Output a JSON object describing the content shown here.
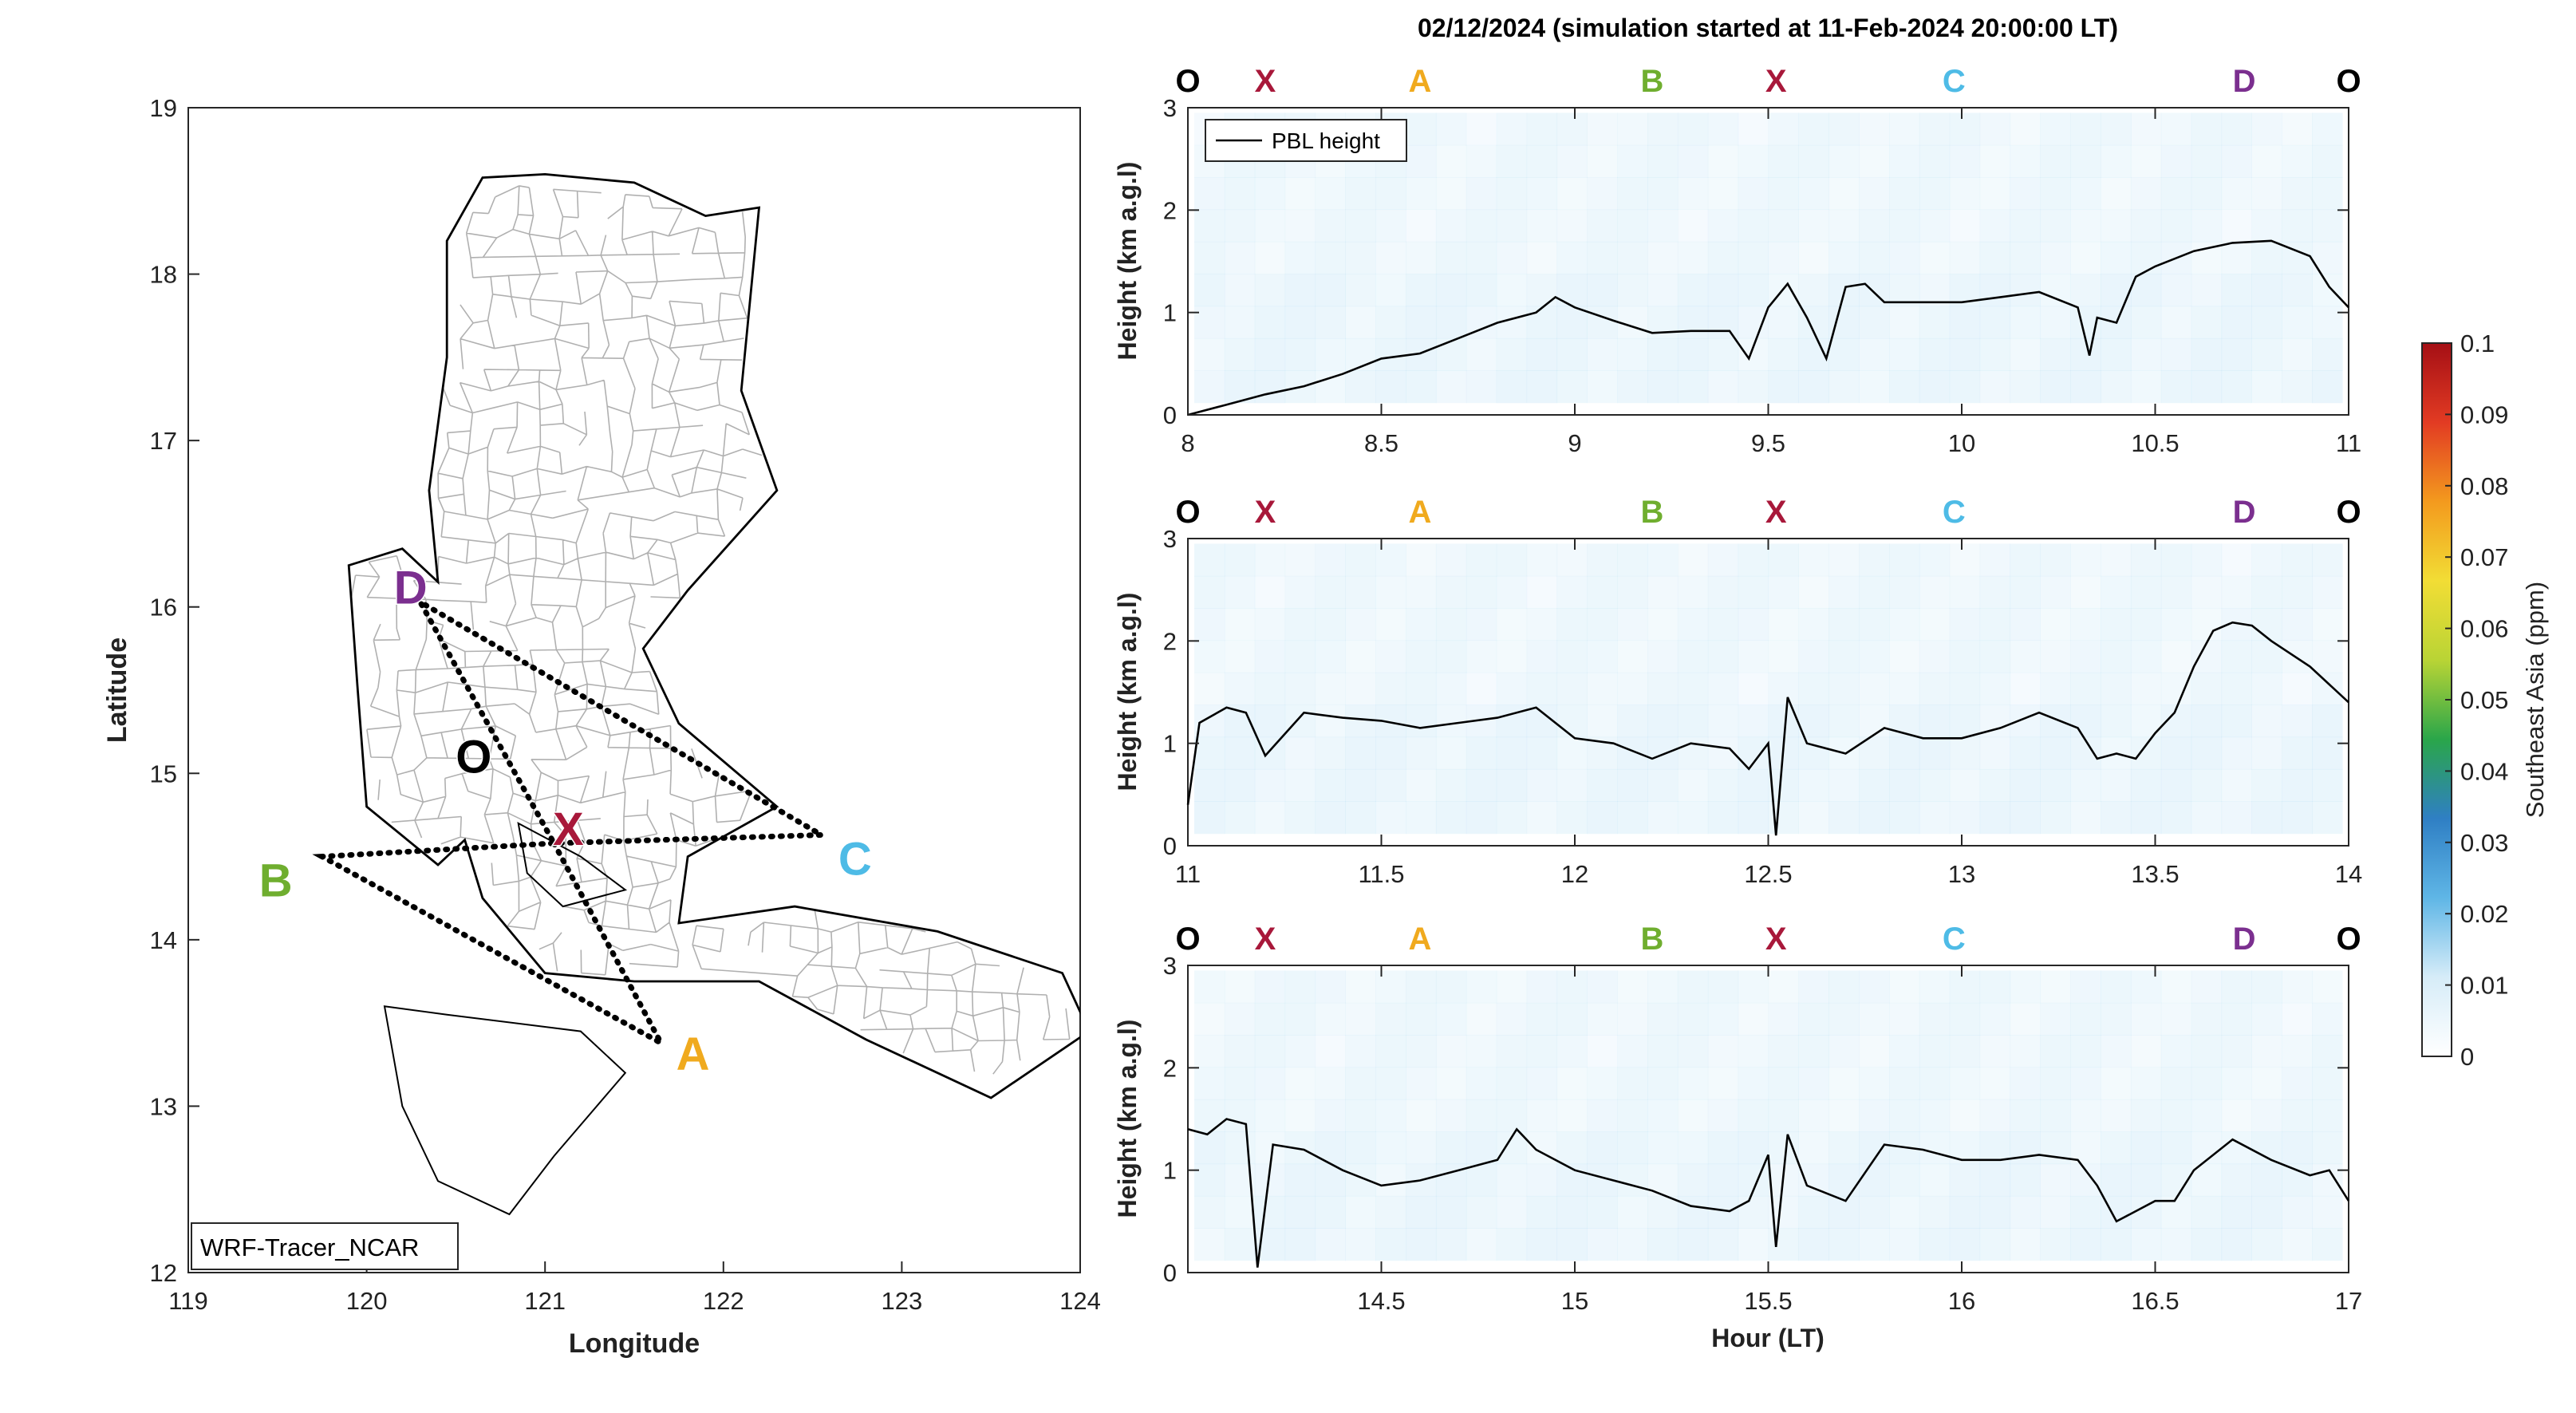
{
  "figure": {
    "title": "02/12/2024 (simulation started at 11-Feb-2024 20:00:00 LT)",
    "colorbar": {
      "label": "Southeast Asia (ppm)",
      "ticks": [
        "0",
        "0.01",
        "0.02",
        "0.03",
        "0.04",
        "0.05",
        "0.06",
        "0.07",
        "0.08",
        "0.09",
        "0.1"
      ],
      "range": [
        0,
        0.1
      ],
      "colormap": [
        "#ffffff",
        "#d6ecf8",
        "#5fb6e6",
        "#2f7fc4",
        "#2aa64a",
        "#b9d435",
        "#f2dd35",
        "#f39a1e",
        "#e23b23",
        "#a50f15"
      ]
    },
    "waypoint_colors": {
      "O": "#000000",
      "X": "#a8183a",
      "A": "#f0aa1e",
      "B": "#6fae2f",
      "C": "#4ebbe6",
      "D": "#7b2f8f"
    }
  },
  "chart_data": [
    {
      "type": "map",
      "xlabel": "Longitude",
      "ylabel": "Latitude",
      "xlim": [
        119,
        124
      ],
      "ylim": [
        12,
        19
      ],
      "xticks": [
        "119",
        "120",
        "121",
        "122",
        "123",
        "124"
      ],
      "yticks": [
        "12",
        "13",
        "14",
        "15",
        "16",
        "17",
        "18",
        "19"
      ],
      "annotation": "WRF-Tracer_NCAR",
      "waypoints": [
        {
          "label": "O",
          "lon": 120.6,
          "lat": 15.1
        },
        {
          "label": "X",
          "lon": 121.05,
          "lat": 14.58
        },
        {
          "label": "A",
          "lon": 121.65,
          "lat": 13.38
        },
        {
          "label": "B",
          "lon": 119.75,
          "lat": 14.5
        },
        {
          "label": "C",
          "lon": 122.55,
          "lat": 14.63
        },
        {
          "label": "D",
          "lon": 120.3,
          "lat": 16.03
        }
      ],
      "flight_route": [
        "X",
        "A",
        "B",
        "X",
        "C",
        "D",
        "X"
      ],
      "coastline_outline": [
        [
          120.65,
          18.58
        ],
        [
          121.0,
          18.6
        ],
        [
          121.5,
          18.55
        ],
        [
          121.9,
          18.35
        ],
        [
          122.2,
          18.4
        ],
        [
          122.1,
          17.3
        ],
        [
          122.3,
          16.7
        ],
        [
          121.8,
          16.1
        ],
        [
          121.55,
          15.75
        ],
        [
          121.75,
          15.3
        ],
        [
          122.3,
          14.8
        ],
        [
          121.8,
          14.5
        ],
        [
          121.75,
          14.1
        ],
        [
          122.4,
          14.2
        ],
        [
          123.2,
          14.05
        ],
        [
          123.9,
          13.8
        ],
        [
          124.05,
          13.45
        ],
        [
          123.5,
          13.05
        ],
        [
          122.8,
          13.4
        ],
        [
          122.2,
          13.75
        ],
        [
          121.5,
          13.75
        ],
        [
          121.0,
          13.8
        ],
        [
          120.65,
          14.25
        ],
        [
          120.55,
          14.6
        ],
        [
          120.4,
          14.45
        ],
        [
          120.0,
          14.8
        ],
        [
          119.95,
          15.5
        ],
        [
          119.9,
          16.25
        ],
        [
          120.2,
          16.35
        ],
        [
          120.4,
          16.15
        ],
        [
          120.35,
          16.7
        ],
        [
          120.45,
          17.5
        ],
        [
          120.45,
          18.2
        ],
        [
          120.65,
          18.58
        ]
      ],
      "inner_outlines": [
        [
          [
            120.85,
            14.7
          ],
          [
            121.2,
            14.5
          ],
          [
            121.45,
            14.3
          ],
          [
            121.1,
            14.2
          ],
          [
            120.9,
            14.4
          ]
        ],
        [
          [
            120.1,
            13.6
          ],
          [
            120.45,
            13.55
          ],
          [
            121.2,
            13.45
          ],
          [
            121.45,
            13.2
          ],
          [
            121.05,
            12.7
          ],
          [
            120.8,
            12.35
          ],
          [
            120.4,
            12.55
          ],
          [
            120.2,
            13.0
          ]
        ]
      ]
    },
    {
      "type": "line",
      "xlim": [
        8,
        11
      ],
      "ylim": [
        0,
        3
      ],
      "xticks": [
        "8",
        "8.5",
        "9",
        "9.5",
        "10",
        "10.5",
        "11"
      ],
      "yticks": [
        "0",
        "1",
        "2",
        "3"
      ],
      "ylabel": "Height (km a.g.l)",
      "legend": "PBL height",
      "legend_position": "top-left",
      "waypoint_markers": [
        {
          "label": "O",
          "hour": 8.0
        },
        {
          "label": "X",
          "hour": 8.2
        },
        {
          "label": "A",
          "hour": 8.6
        },
        {
          "label": "B",
          "hour": 9.2
        },
        {
          "label": "X",
          "hour": 9.52
        },
        {
          "label": "C",
          "hour": 9.98
        },
        {
          "label": "D",
          "hour": 10.73
        },
        {
          "label": "O",
          "hour": 11.0
        }
      ],
      "series": [
        {
          "name": "PBL height",
          "x": [
            8.0,
            8.1,
            8.2,
            8.3,
            8.4,
            8.5,
            8.6,
            8.7,
            8.8,
            8.9,
            8.95,
            9.0,
            9.1,
            9.2,
            9.3,
            9.4,
            9.45,
            9.5,
            9.55,
            9.6,
            9.65,
            9.7,
            9.75,
            9.8,
            9.9,
            10.0,
            10.1,
            10.2,
            10.3,
            10.33,
            10.35,
            10.4,
            10.45,
            10.5,
            10.6,
            10.7,
            10.8,
            10.9,
            10.95,
            11.0
          ],
          "y": [
            0.0,
            0.1,
            0.2,
            0.28,
            0.4,
            0.55,
            0.6,
            0.75,
            0.9,
            1.0,
            1.15,
            1.05,
            0.92,
            0.8,
            0.82,
            0.82,
            0.55,
            1.05,
            1.28,
            0.95,
            0.55,
            1.25,
            1.28,
            1.1,
            1.1,
            1.1,
            1.15,
            1.2,
            1.05,
            0.58,
            0.95,
            0.9,
            1.35,
            1.45,
            1.6,
            1.68,
            1.7,
            1.55,
            1.25,
            1.05
          ]
        }
      ]
    },
    {
      "type": "line",
      "xlim": [
        11,
        14
      ],
      "ylim": [
        0,
        3
      ],
      "xticks": [
        "11",
        "11.5",
        "12",
        "12.5",
        "13",
        "13.5",
        "14"
      ],
      "yticks": [
        "0",
        "1",
        "2",
        "3"
      ],
      "ylabel": "Height (km a.g.l)",
      "waypoint_markers": [
        {
          "label": "O",
          "hour": 11.0
        },
        {
          "label": "X",
          "hour": 11.2
        },
        {
          "label": "A",
          "hour": 11.6
        },
        {
          "label": "B",
          "hour": 12.2
        },
        {
          "label": "X",
          "hour": 12.52
        },
        {
          "label": "C",
          "hour": 12.98
        },
        {
          "label": "D",
          "hour": 13.73
        },
        {
          "label": "O",
          "hour": 14.0
        }
      ],
      "series": [
        {
          "name": "PBL height",
          "x": [
            11.0,
            11.03,
            11.1,
            11.15,
            11.2,
            11.3,
            11.4,
            11.5,
            11.6,
            11.7,
            11.8,
            11.9,
            12.0,
            12.1,
            12.2,
            12.3,
            12.4,
            12.45,
            12.5,
            12.52,
            12.55,
            12.6,
            12.7,
            12.8,
            12.9,
            13.0,
            13.1,
            13.2,
            13.3,
            13.35,
            13.4,
            13.45,
            13.5,
            13.55,
            13.6,
            13.65,
            13.7,
            13.75,
            13.8,
            13.9,
            14.0
          ],
          "y": [
            0.4,
            1.2,
            1.35,
            1.3,
            0.88,
            1.3,
            1.25,
            1.22,
            1.15,
            1.2,
            1.25,
            1.35,
            1.05,
            1.0,
            0.85,
            1.0,
            0.95,
            0.75,
            1.0,
            0.1,
            1.45,
            1.0,
            0.9,
            1.15,
            1.05,
            1.05,
            1.15,
            1.3,
            1.15,
            0.85,
            0.9,
            0.85,
            1.1,
            1.3,
            1.75,
            2.1,
            2.18,
            2.15,
            2.0,
            1.75,
            1.4
          ]
        }
      ]
    },
    {
      "type": "line",
      "xlim": [
        14,
        17
      ],
      "ylim": [
        0,
        3
      ],
      "xticks": [
        "14.5",
        "15",
        "15.5",
        "16",
        "16.5",
        "17"
      ],
      "yticks": [
        "0",
        "1",
        "2",
        "3"
      ],
      "xlabel": "Hour (LT)",
      "ylabel": "Height (km a.g.l)",
      "waypoint_markers": [
        {
          "label": "O",
          "hour": 14.0
        },
        {
          "label": "X",
          "hour": 14.2
        },
        {
          "label": "A",
          "hour": 14.6
        },
        {
          "label": "B",
          "hour": 15.2
        },
        {
          "label": "X",
          "hour": 15.52
        },
        {
          "label": "C",
          "hour": 15.98
        },
        {
          "label": "D",
          "hour": 16.73
        },
        {
          "label": "O",
          "hour": 17.0
        }
      ],
      "series": [
        {
          "name": "PBL height",
          "x": [
            14.0,
            14.05,
            14.1,
            14.15,
            14.18,
            14.22,
            14.3,
            14.4,
            14.5,
            14.6,
            14.7,
            14.8,
            14.85,
            14.9,
            15.0,
            15.1,
            15.2,
            15.3,
            15.4,
            15.45,
            15.5,
            15.52,
            15.55,
            15.6,
            15.7,
            15.8,
            15.9,
            16.0,
            16.1,
            16.2,
            16.3,
            16.35,
            16.4,
            16.5,
            16.55,
            16.6,
            16.7,
            16.8,
            16.9,
            16.95,
            17.0
          ],
          "y": [
            1.4,
            1.35,
            1.5,
            1.45,
            0.05,
            1.25,
            1.2,
            1.0,
            0.85,
            0.9,
            1.0,
            1.1,
            1.4,
            1.2,
            1.0,
            0.9,
            0.8,
            0.65,
            0.6,
            0.7,
            1.15,
            0.25,
            1.35,
            0.85,
            0.7,
            1.25,
            1.2,
            1.1,
            1.1,
            1.15,
            1.1,
            0.85,
            0.5,
            0.7,
            0.7,
            1.0,
            1.3,
            1.1,
            0.95,
            1.0,
            0.7
          ]
        }
      ]
    }
  ]
}
